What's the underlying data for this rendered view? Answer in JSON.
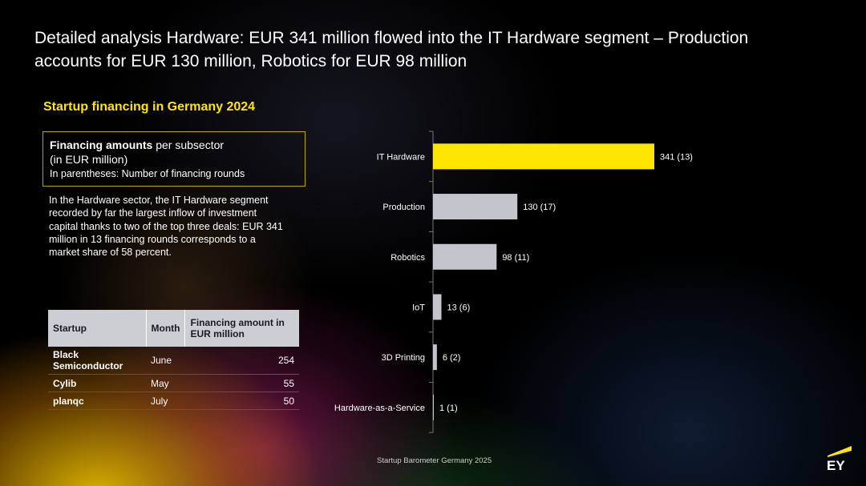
{
  "title": "Detailed analysis Hardware: EUR 341 million flowed into the IT Hardware segment – Production accounts for EUR 130 million, Robotics for EUR 98 million",
  "subtitle": "Startup financing in Germany 2024",
  "info_box": {
    "line1_bold": "Financing amounts",
    "line1_rest": " per subsector",
    "line2": "(in EUR million)",
    "line3": "In parentheses: Number of financing rounds"
  },
  "description": "In the Hardware sector, the IT Hardware segment recorded by far the largest inflow of investment capital thanks to two of the top three deals: EUR 341 million in 13 financing rounds corresponds to a market share of 58 percent.",
  "table": {
    "headers": [
      "Startup",
      "Month",
      "Financing amount in EUR million"
    ],
    "rows": [
      [
        "Black Semiconductor",
        "June",
        "254"
      ],
      [
        "Cylib",
        "May",
        "55"
      ],
      [
        "planqc",
        "July",
        "50"
      ]
    ]
  },
  "footer": "Startup Barometer Germany 2025",
  "logo_text": "EY",
  "colors": {
    "accent": "#ffe600",
    "bar_default": "#c4c4cd",
    "axis": "#777777"
  },
  "chart_data": {
    "type": "bar",
    "orientation": "horizontal",
    "categories": [
      "IT Hardware",
      "Production",
      "Robotics",
      "IoT",
      "3D Printing",
      "Hardware-as-a-Service"
    ],
    "values": [
      341,
      130,
      98,
      13,
      6,
      1
    ],
    "rounds": [
      13,
      17,
      11,
      6,
      2,
      1
    ],
    "data_labels": [
      "341 (13)",
      "130 (17)",
      "98 (11)",
      "13 (6)",
      "6 (2)",
      "1 (1)"
    ],
    "highlight_index": 0,
    "xlim": [
      0,
      341
    ]
  }
}
